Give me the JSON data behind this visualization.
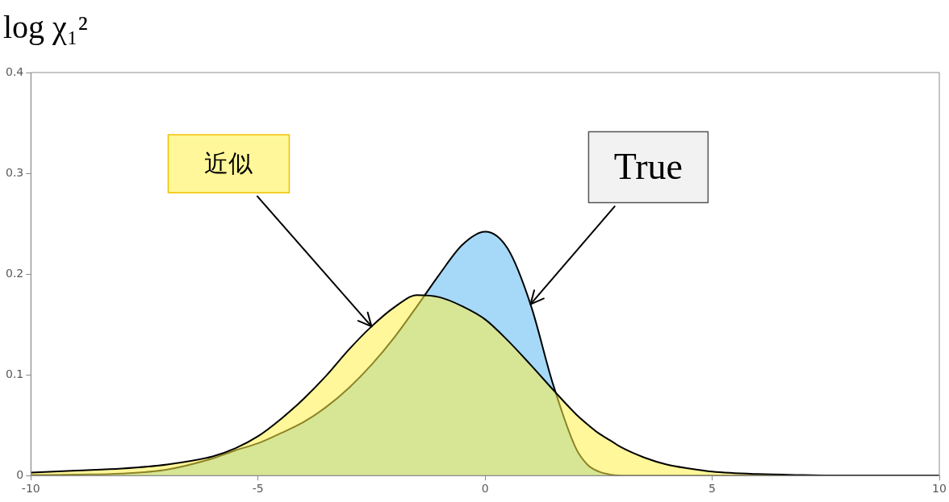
{
  "chart_data": {
    "type": "area",
    "title": "log χ₁²",
    "x": [
      -10,
      -9,
      -8,
      -7,
      -6,
      -5.5,
      -5,
      -4.5,
      -4,
      -3.5,
      -3,
      -2.5,
      -2,
      -1.5,
      -1,
      -0.5,
      0,
      0.5,
      1,
      1.5,
      2,
      2.25,
      2.5,
      2.75,
      3,
      3.5,
      4,
      4.5,
      5,
      6,
      7,
      8,
      10
    ],
    "series": [
      {
        "color": "#fff799",
        "values": [
          0.003,
          0.005,
          0.007,
          0.011,
          0.019,
          0.027,
          0.039,
          0.056,
          0.076,
          0.099,
          0.125,
          0.148,
          0.167,
          0.179,
          0.177,
          0.168,
          0.155,
          0.134,
          0.11,
          0.085,
          0.061,
          0.051,
          0.042,
          0.035,
          0.028,
          0.018,
          0.011,
          0.007,
          0.004,
          0.0015,
          0.0005,
          0,
          0
        ]
      },
      {
        "color": "#a6d9f7",
        "values": [
          0.0005,
          0.001,
          0.002,
          0.006,
          0.017,
          0.025,
          0.032,
          0.042,
          0.053,
          0.068,
          0.087,
          0.11,
          0.137,
          0.168,
          0.2,
          0.229,
          0.242,
          0.225,
          0.17,
          0.09,
          0.027,
          0.011,
          0.004,
          0.001,
          0,
          0,
          0,
          0,
          0,
          0,
          0,
          0,
          0
        ]
      }
    ],
    "xlim": [
      -10,
      10
    ],
    "xticks": [
      -10,
      -5,
      0,
      5,
      10
    ],
    "ylim": [
      0,
      0.4
    ],
    "yticks": [
      0,
      0.1,
      0.2,
      0.3,
      0.4
    ],
    "grid": false,
    "legend": false,
    "annotations": [
      {
        "text": "近似",
        "x": -2.5,
        "y": 0.148
      },
      {
        "text": "True",
        "x": 1,
        "y": 0.17
      }
    ]
  }
}
